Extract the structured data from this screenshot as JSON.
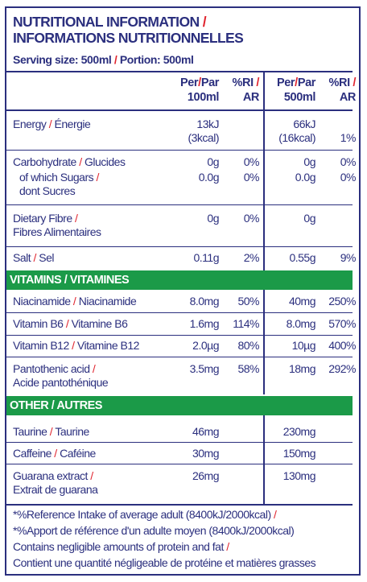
{
  "title": {
    "en": "NUTRITIONAL INFORMATION",
    "sep": " /",
    "fr": "INFORMATIONS NUTRITIONNELLES"
  },
  "serving": {
    "en": "Serving size: 500ml",
    "sep": " / ",
    "fr": "Portion: 500ml"
  },
  "headers": {
    "per100_l1_en": "Per",
    "per100_sep": "/",
    "per100_l1_fr": "Par",
    "per100_l2": "100ml",
    "ri_l1_en": "%RI",
    "ri_sep": " /",
    "ri_l2": "AR",
    "per500_l1_en": "Per",
    "per500_sep": "/",
    "per500_l1_fr": "Par",
    "per500_l2": "500ml",
    "ri2_l1_en": "%RI",
    "ri2_sep": " /",
    "ri2_l2": "AR"
  },
  "rows": {
    "energy": {
      "en": "Energy",
      "sep": " / ",
      "fr": "Énergie",
      "v100_kj": "13kJ",
      "v100_kcal": "(3kcal)",
      "v500_kj": "66kJ",
      "v500_kcal": "(16kcal)",
      "ri500": "1%"
    },
    "carb": {
      "en": "Carbohydrate",
      "sep": " / ",
      "fr": "Glucides",
      "v100": "0g",
      "ri100": "0%",
      "v500": "0g",
      "ri500": "0%"
    },
    "sugars": {
      "en": "of which Sugars",
      "sep": " /",
      "fr": "dont Sucres",
      "v100": "0.0g",
      "ri100": "0%",
      "v500": "0.0g",
      "ri500": "0%"
    },
    "fibre": {
      "en": "Dietary Fibre",
      "sep": " /",
      "fr": "Fibres Alimentaires",
      "v100": "0g",
      "ri100": "0%",
      "v500": "0g"
    },
    "salt": {
      "en": "Salt",
      "sep": " / ",
      "fr": "Sel",
      "v100": "0.11g",
      "ri100": "2%",
      "v500": "0.55g",
      "ri500": "9%"
    }
  },
  "vitamins": {
    "band": {
      "en": "VITAMINS",
      "sep": " / ",
      "fr": "VITAMINES"
    },
    "niacin": {
      "en": "Niacinamide",
      "sep": " / ",
      "fr": "Niacinamide",
      "v100": "8.0mg",
      "ri100": "50%",
      "v500": "40mg",
      "ri500": "250%"
    },
    "b6": {
      "en": "Vitamin B6",
      "sep": " / ",
      "fr": "Vitamine B6",
      "v100": "1.6mg",
      "ri100": "114%",
      "v500": "8.0mg",
      "ri500": "570%"
    },
    "b12": {
      "en": "Vitamin B12",
      "sep": " / ",
      "fr": "Vitamine B12",
      "v100": "2.0µg",
      "ri100": "80%",
      "v500": "10µg",
      "ri500": "400%"
    },
    "panto": {
      "en": "Pantothenic acid",
      "sep": " /",
      "fr": "Acide pantothénique",
      "v100": "3.5mg",
      "ri100": "58%",
      "v500": "18mg",
      "ri500": "292%"
    }
  },
  "other": {
    "band": {
      "en": "OTHER",
      "sep": " / ",
      "fr": "AUTRES"
    },
    "taurine": {
      "en": "Taurine",
      "sep": " / ",
      "fr": "Taurine",
      "v100": "46mg",
      "v500": "230mg"
    },
    "caffeine": {
      "en": "Caffeine",
      "sep": " / ",
      "fr": "Caféine",
      "v100": "30mg",
      "v500": "150mg"
    },
    "guarana": {
      "en": "Guarana extract",
      "sep": " /",
      "fr": "Extrait de guarana",
      "v100": "26mg",
      "v500": "130mg"
    }
  },
  "footer": {
    "line1": "*%Reference Intake of average adult (8400kJ/2000kcal)",
    "line1_sep": " /",
    "line2": "*%Apport de référence d'un adulte moyen (8400kJ/2000kcal)",
    "line3": "Contains negligible amounts of protein and fat",
    "line3_sep": " /",
    "line4": "Contient une quantité négligeable de protéine et matières grasses"
  },
  "colors": {
    "text": "#2b2f7e",
    "accent": "#e0242e",
    "band": "#1b9a48"
  }
}
